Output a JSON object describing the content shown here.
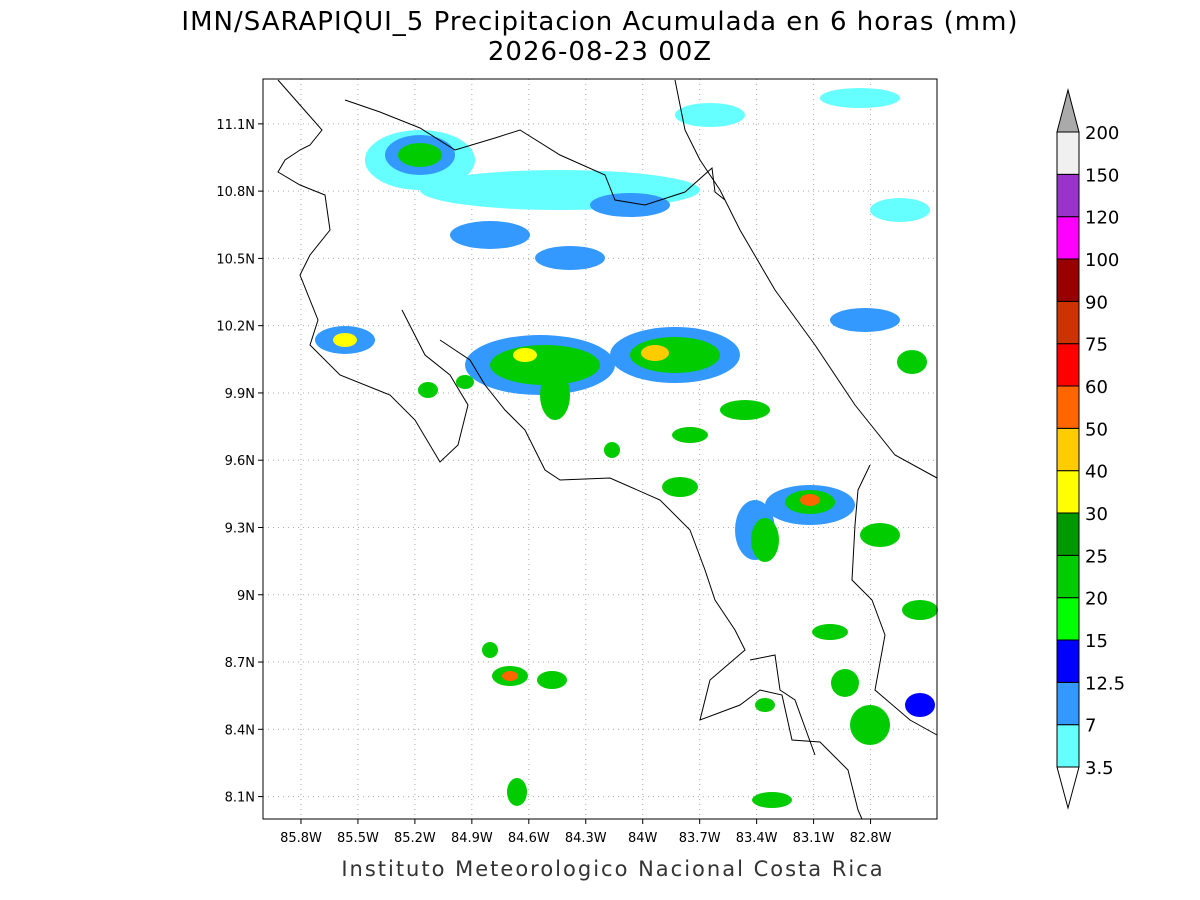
{
  "header": {
    "title": "IMN/SARAPIQUI_5 Precipitacion Acumulada en 6 horas (mm)",
    "subtitle": "2026-08-23 00Z"
  },
  "map": {
    "lon_range": [
      -86.0,
      -82.45
    ],
    "lat_range": [
      8.0,
      11.3
    ],
    "lon_ticks": [
      {
        "value": -85.8,
        "label": "85.8W"
      },
      {
        "value": -85.5,
        "label": "85.5W"
      },
      {
        "value": -85.2,
        "label": "85.2W"
      },
      {
        "value": -84.9,
        "label": "84.9W"
      },
      {
        "value": -84.6,
        "label": "84.6W"
      },
      {
        "value": -84.3,
        "label": "84.3W"
      },
      {
        "value": -84.0,
        "label": "84W"
      },
      {
        "value": -83.7,
        "label": "83.7W"
      },
      {
        "value": -83.4,
        "label": "83.4W"
      },
      {
        "value": -83.1,
        "label": "83.1W"
      },
      {
        "value": -82.8,
        "label": "82.8W"
      }
    ],
    "lat_ticks": [
      {
        "value": 8.1,
        "label": "8.1N"
      },
      {
        "value": 8.4,
        "label": "8.4N"
      },
      {
        "value": 8.7,
        "label": "8.7N"
      },
      {
        "value": 9.0,
        "label": "9N"
      },
      {
        "value": 9.3,
        "label": "9.3N"
      },
      {
        "value": 9.6,
        "label": "9.6N"
      },
      {
        "value": 9.9,
        "label": "9.9N"
      },
      {
        "value": 10.2,
        "label": "10.2N"
      },
      {
        "value": 10.5,
        "label": "10.5N"
      },
      {
        "value": 10.8,
        "label": "10.8N"
      },
      {
        "value": 11.1,
        "label": "11.1N"
      }
    ]
  },
  "colorbar": {
    "levels": [
      3.5,
      7,
      12.5,
      15,
      20,
      25,
      30,
      40,
      50,
      60,
      75,
      90,
      100,
      120,
      150,
      200
    ],
    "colors": [
      "#66ffff",
      "#3399ff",
      "#0000ff",
      "#00ff00",
      "#00cc00",
      "#009900",
      "#ffff00",
      "#ffcc00",
      "#ff6600",
      "#ff0000",
      "#cc3300",
      "#990000",
      "#ff00ff",
      "#9933cc",
      "#f0f0f0"
    ],
    "under_color": "#ffffff",
    "over_color": "#aaaaaa"
  },
  "footer": {
    "credit": "Instituto Meteorologico Nacional Costa Rica"
  }
}
